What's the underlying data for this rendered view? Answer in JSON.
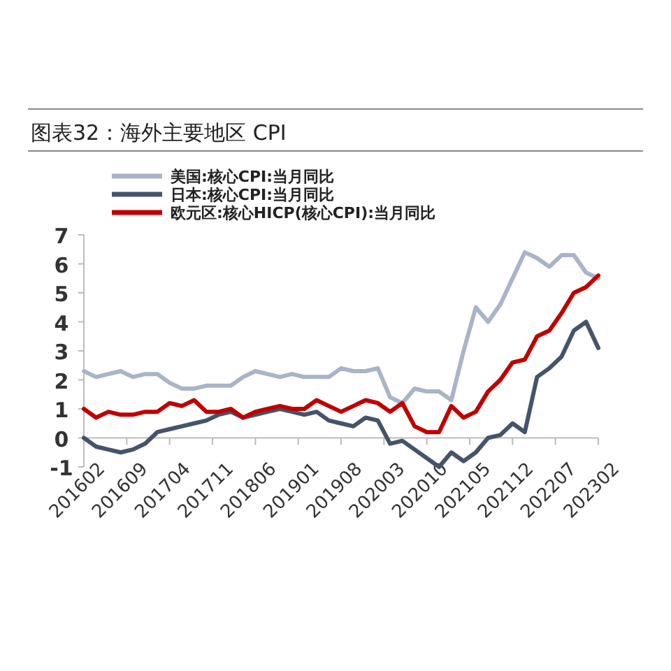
{
  "chart_data": {
    "type": "line",
    "title": "图表32：海外主要地区 CPI",
    "x": [
      "2016-02",
      "2016-04",
      "2016-06",
      "2016-08",
      "2016-10",
      "2016-12",
      "2017-02",
      "2017-04",
      "2017-06",
      "2017-08",
      "2017-10",
      "2017-12",
      "2018-02",
      "2018-04",
      "2018-06",
      "2018-08",
      "2018-10",
      "2018-12",
      "2019-02",
      "2019-04",
      "2019-06",
      "2019-08",
      "2019-10",
      "2019-12",
      "2020-02",
      "2020-04",
      "2020-06",
      "2020-08",
      "2020-10",
      "2020-12",
      "2021-02",
      "2021-04",
      "2021-06",
      "2021-08",
      "2021-10",
      "2021-12",
      "2022-02",
      "2022-04",
      "2022-06",
      "2022-08",
      "2022-10",
      "2022-12",
      "2023-02"
    ],
    "series": [
      {
        "name": "美国:核心CPI:当月同比",
        "color": "#a9b4c8",
        "values": [
          2.3,
          2.1,
          2.2,
          2.3,
          2.1,
          2.2,
          2.2,
          1.9,
          1.7,
          1.7,
          1.8,
          1.8,
          1.8,
          2.1,
          2.3,
          2.2,
          2.1,
          2.2,
          2.1,
          2.1,
          2.1,
          2.4,
          2.3,
          2.3,
          2.4,
          1.4,
          1.2,
          1.7,
          1.6,
          1.6,
          1.3,
          3.0,
          4.5,
          4.0,
          4.6,
          5.5,
          6.4,
          6.2,
          5.9,
          6.3,
          6.3,
          5.7,
          5.5
        ]
      },
      {
        "name": "日本:核心CPI:当月同比",
        "color": "#44546a",
        "values": [
          0.0,
          -0.3,
          -0.4,
          -0.5,
          -0.4,
          -0.2,
          0.2,
          0.3,
          0.4,
          0.5,
          0.6,
          0.8,
          0.9,
          0.7,
          0.8,
          0.9,
          1.0,
          0.9,
          0.8,
          0.9,
          0.6,
          0.5,
          0.4,
          0.7,
          0.6,
          -0.2,
          -0.1,
          -0.4,
          -0.7,
          -1.0,
          -0.5,
          -0.8,
          -0.5,
          0.0,
          0.1,
          0.5,
          0.2,
          2.1,
          2.4,
          2.8,
          3.7,
          4.0,
          3.1
        ]
      },
      {
        "name": "欧元区:核心HICP(核心CPI):当月同比",
        "color": "#c00000",
        "values": [
          1.0,
          0.7,
          0.9,
          0.8,
          0.8,
          0.9,
          0.9,
          1.2,
          1.1,
          1.3,
          0.9,
          0.9,
          1.0,
          0.7,
          0.9,
          1.0,
          1.1,
          1.0,
          1.0,
          1.3,
          1.1,
          0.9,
          1.1,
          1.3,
          1.2,
          0.9,
          1.2,
          0.4,
          0.2,
          0.2,
          1.1,
          0.7,
          0.9,
          1.6,
          2.0,
          2.6,
          2.7,
          3.5,
          3.7,
          4.3,
          5.0,
          5.2,
          5.6
        ]
      }
    ],
    "xlim": [
      "2016-02",
      "2023-02"
    ],
    "xticks": [
      {
        "value": "2016-02",
        "label": "201602"
      },
      {
        "value": "2016-09",
        "label": "201609"
      },
      {
        "value": "2017-04",
        "label": "201704"
      },
      {
        "value": "2017-11",
        "label": "201711"
      },
      {
        "value": "2018-06",
        "label": "201806"
      },
      {
        "value": "2019-01",
        "label": "201901"
      },
      {
        "value": "2019-08",
        "label": "201908"
      },
      {
        "value": "2020-03",
        "label": "202003"
      },
      {
        "value": "2020-10",
        "label": "202010"
      },
      {
        "value": "2021-05",
        "label": "202105"
      },
      {
        "value": "2021-12",
        "label": "202112"
      },
      {
        "value": "2022-07",
        "label": "202207"
      },
      {
        "value": "2023-02",
        "label": "202302"
      }
    ],
    "ylim": [
      -1,
      7
    ],
    "yticks": [
      -1,
      0,
      1,
      2,
      3,
      4,
      5,
      6,
      7
    ],
    "legend": "top left"
  }
}
